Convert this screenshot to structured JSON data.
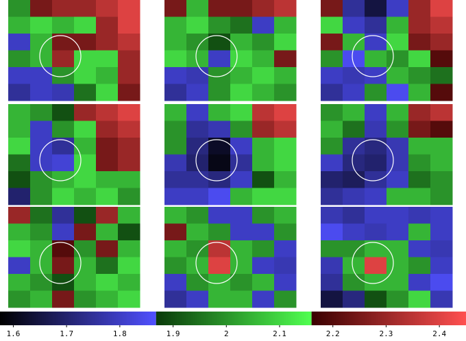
{
  "chart_data": {
    "type": "heatmap",
    "panels": [
      {
        "values": [
          [
            2.0,
            2.25,
            2.3,
            2.3,
            2.35,
            2.4
          ],
          [
            2.05,
            2.1,
            2.05,
            2.1,
            2.3,
            2.4
          ],
          [
            1.8,
            2.05,
            2.25,
            2.25,
            2.3,
            2.35
          ],
          [
            2.0,
            2.05,
            2.3,
            2.1,
            2.1,
            2.3
          ],
          [
            1.8,
            1.8,
            2.0,
            2.1,
            2.05,
            2.3
          ],
          [
            1.75,
            1.8,
            1.78,
            1.95,
            2.1,
            2.25
          ]
        ]
      },
      {
        "values": [
          [
            2.25,
            2.05,
            2.25,
            2.25,
            2.3,
            2.35
          ],
          [
            2.05,
            2.1,
            2.0,
            1.95,
            1.8,
            2.05
          ],
          [
            2.05,
            2.0,
            1.9,
            2.05,
            2.0,
            2.1
          ],
          [
            2.1,
            2.05,
            1.8,
            2.1,
            2.05,
            2.25
          ],
          [
            1.8,
            1.78,
            2.0,
            2.05,
            2.1,
            2.05
          ],
          [
            1.75,
            1.8,
            2.0,
            2.1,
            2.05,
            2.0
          ]
        ]
      },
      {
        "values": [
          [
            2.25,
            1.75,
            1.65,
            1.8,
            2.3,
            2.4
          ],
          [
            2.1,
            1.8,
            1.75,
            2.05,
            2.3,
            2.35
          ],
          [
            2.25,
            2.05,
            1.8,
            2.1,
            2.25,
            2.3
          ],
          [
            2.0,
            1.85,
            2.05,
            2.0,
            2.1,
            2.2
          ],
          [
            1.8,
            1.78,
            1.8,
            2.05,
            2.0,
            1.95
          ],
          [
            1.75,
            1.8,
            2.0,
            1.85,
            2.05,
            2.2
          ]
        ]
      },
      {
        "values": [
          [
            2.05,
            2.0,
            1.9,
            2.3,
            2.35,
            2.4
          ],
          [
            2.05,
            1.8,
            2.0,
            2.1,
            2.3,
            2.35
          ],
          [
            2.1,
            1.8,
            1.75,
            2.05,
            2.25,
            2.3
          ],
          [
            1.95,
            1.8,
            1.82,
            2.1,
            2.25,
            2.3
          ],
          [
            1.9,
            2.0,
            2.05,
            2.1,
            2.05,
            2.05
          ],
          [
            1.7,
            2.0,
            2.1,
            2.05,
            2.1,
            2.0
          ]
        ]
      },
      {
        "values": [
          [
            2.05,
            1.8,
            2.05,
            2.1,
            2.35,
            2.4
          ],
          [
            2.0,
            1.75,
            1.78,
            2.0,
            2.3,
            2.35
          ],
          [
            2.0,
            1.72,
            1.62,
            1.8,
            2.05,
            2.1
          ],
          [
            1.78,
            1.7,
            1.6,
            1.75,
            2.05,
            2.1
          ],
          [
            1.75,
            1.75,
            1.72,
            1.8,
            1.9,
            2.05
          ],
          [
            1.8,
            1.8,
            1.85,
            2.05,
            2.1,
            2.1
          ]
        ]
      },
      {
        "values": [
          [
            2.0,
            2.05,
            1.8,
            2.05,
            2.3,
            2.35
          ],
          [
            2.05,
            1.95,
            1.78,
            2.0,
            2.25,
            2.2
          ],
          [
            2.0,
            1.75,
            1.72,
            1.78,
            2.05,
            2.05
          ],
          [
            1.8,
            1.72,
            1.7,
            1.78,
            2.0,
            2.05
          ],
          [
            1.7,
            1.68,
            1.75,
            1.8,
            1.95,
            2.0
          ],
          [
            1.75,
            1.78,
            1.8,
            2.05,
            2.05,
            2.0
          ]
        ]
      },
      {
        "values": [
          [
            2.3,
            1.95,
            1.75,
            1.9,
            2.3,
            2.05
          ],
          [
            2.05,
            2.0,
            1.8,
            2.25,
            2.05,
            1.9
          ],
          [
            2.1,
            2.05,
            2.2,
            2.0,
            2.25,
            2.05
          ],
          [
            1.8,
            2.05,
            2.25,
            2.05,
            1.95,
            2.1
          ],
          [
            2.05,
            2.0,
            1.9,
            2.05,
            2.1,
            2.05
          ],
          [
            2.0,
            2.05,
            2.25,
            2.0,
            2.05,
            2.1
          ]
        ]
      },
      {
        "values": [
          [
            2.05,
            2.0,
            1.8,
            1.8,
            2.0,
            2.05
          ],
          [
            2.25,
            2.05,
            2.0,
            1.8,
            1.8,
            2.0
          ],
          [
            2.05,
            2.0,
            2.35,
            2.05,
            2.0,
            1.8
          ],
          [
            2.0,
            2.05,
            2.4,
            2.05,
            1.8,
            1.78
          ],
          [
            1.8,
            2.0,
            2.05,
            2.0,
            2.05,
            1.8
          ],
          [
            1.75,
            1.8,
            2.05,
            2.05,
            1.8,
            2.0
          ]
        ]
      },
      {
        "values": [
          [
            1.78,
            1.75,
            1.8,
            1.8,
            1.78,
            1.8
          ],
          [
            1.85,
            1.8,
            1.78,
            1.8,
            2.05,
            1.8
          ],
          [
            2.0,
            2.0,
            2.05,
            2.05,
            1.8,
            1.78
          ],
          [
            1.78,
            2.05,
            2.4,
            2.05,
            2.0,
            1.8
          ],
          [
            1.75,
            2.0,
            2.05,
            2.05,
            1.8,
            1.85
          ],
          [
            1.65,
            1.72,
            1.9,
            2.0,
            2.1,
            1.78
          ]
        ]
      }
    ],
    "colorbar": {
      "clim": [
        1.575,
        2.45
      ],
      "segments": [
        {
          "from": 1.575,
          "to": 1.868,
          "colors": [
            "#000000",
            "#5050ff"
          ]
        },
        {
          "from": 1.868,
          "to": 2.16,
          "colors": [
            "#0a3a0a",
            "#50ff50"
          ]
        },
        {
          "from": 2.16,
          "to": 2.45,
          "colors": [
            "#3a0000",
            "#ff5050"
          ]
        }
      ],
      "ticks": [
        1.6,
        1.7,
        1.8,
        1.9,
        2,
        2.1,
        2.2,
        2.3,
        2.4
      ]
    }
  }
}
